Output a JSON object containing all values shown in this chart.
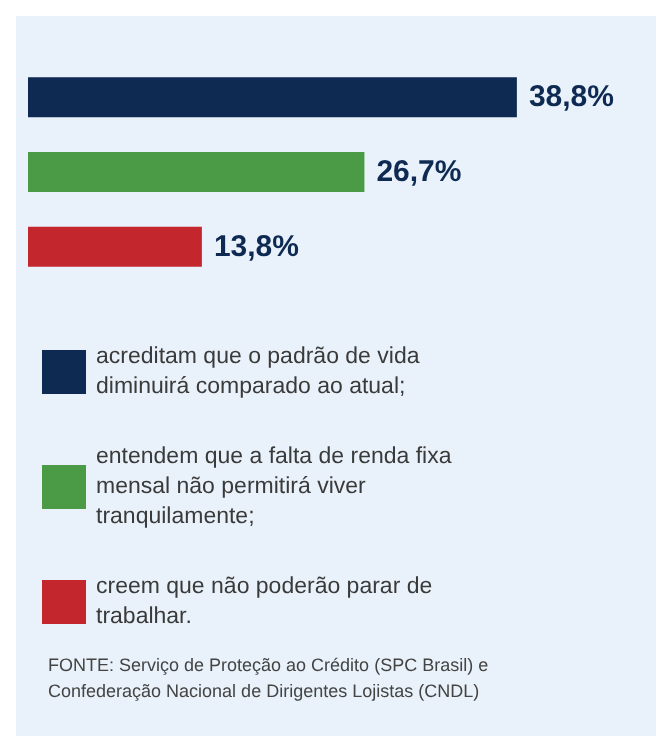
{
  "chart_data": {
    "type": "bar",
    "orientation": "horizontal",
    "stacked": true,
    "categories": [
      null,
      null,
      null
    ],
    "series": [
      {
        "name": "acreditam que o padrão de vida diminuirá comparado ao atual;",
        "color": "#0f2a52",
        "values": [
          38.8,
          null,
          null
        ],
        "value_labels": [
          "38,8%",
          null,
          null
        ]
      },
      {
        "name": "entendem que a falta de renda fixa mensal não permitirá viver tranquilamente;",
        "color": "#4b9a45",
        "values": [
          null,
          26.7,
          null
        ],
        "value_labels": [
          null,
          "26,7%",
          null
        ]
      },
      {
        "name": "creem que não poderão parar de trabalhar.",
        "color": "#c4262e",
        "values": [
          null,
          null,
          13.8
        ],
        "value_labels": [
          null,
          null,
          "13,8%"
        ]
      }
    ],
    "legend": "bottom",
    "annotations": [
      "FONTE: Serviço de Proteção ao Crédito (SPC Brasil) e Confederação Nacional de Dirigentes Lojistas (CNDL)"
    ]
  }
}
